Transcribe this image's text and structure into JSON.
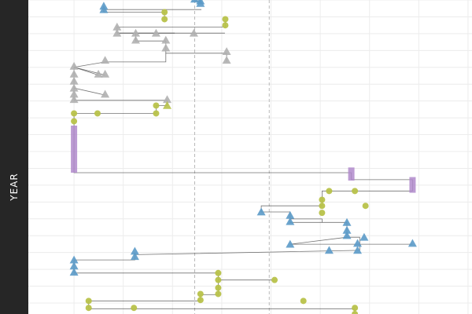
{
  "chart_data": {
    "type": "scatter",
    "ylabel": "YEAR",
    "xlim": [
      0,
      100
    ],
    "ylim": [
      0,
      36
    ],
    "x_ref_lines": [
      37.5,
      54.3
    ],
    "grid": true,
    "legend": "none",
    "colors": {
      "blue": "#5b9ac8",
      "olive": "#b8c24a",
      "gray": "#b0b0b0",
      "purple": "#b08acb",
      "connector": "#444444",
      "grid": "#ececec",
      "refline": "#b8b8b8",
      "strip": "#262626"
    },
    "paths": [
      {
        "c": "blue",
        "pts": [
          [
            37.5,
            0.1
          ],
          [
            38.8,
            0.1
          ],
          [
            38.8,
            0.4
          ]
        ]
      },
      {
        "c": "blue",
        "pts": [
          [
            17,
            0.8
          ],
          [
            17,
            1.1
          ],
          [
            39,
            1.1
          ]
        ]
      },
      {
        "c": "blue",
        "pts": [
          [
            17,
            1.1
          ],
          [
            17,
            1.4
          ]
        ]
      },
      {
        "c": "olive",
        "pts": [
          [
            17,
            1.4
          ],
          [
            30.7,
            1.4
          ],
          [
            30.7,
            2.3
          ]
        ]
      },
      {
        "c": "olive",
        "pts": [
          [
            44.4,
            2.4
          ],
          [
            44.4,
            3.1
          ],
          [
            20,
            3.1
          ]
        ]
      },
      {
        "c": "gray",
        "pts": [
          [
            20,
            3.1
          ],
          [
            20,
            3.8
          ],
          [
            44.3,
            3.8
          ]
        ]
      },
      {
        "c": "gray",
        "pts": [
          [
            20,
            3.8
          ],
          [
            33,
            3.8
          ]
        ]
      },
      {
        "c": "gray",
        "pts": [
          [
            24.2,
            3.8
          ],
          [
            24.2,
            4.7
          ],
          [
            31,
            4.7
          ],
          [
            31,
            5.5
          ]
        ]
      },
      {
        "c": "gray",
        "pts": [
          [
            31,
            5.5
          ],
          [
            31,
            6.1
          ],
          [
            44.7,
            6.1
          ]
        ]
      },
      {
        "c": "gray",
        "pts": [
          [
            31,
            6.1
          ],
          [
            31,
            7.1
          ],
          [
            17.3,
            7.1
          ]
        ]
      },
      {
        "c": "gray",
        "pts": [
          [
            44.7,
            6.1
          ],
          [
            44.7,
            7.1
          ]
        ]
      },
      {
        "c": "gray",
        "pts": [
          [
            17.3,
            7.1
          ],
          [
            10.3,
            7.7
          ]
        ]
      },
      {
        "c": "gray",
        "pts": [
          [
            10.3,
            7.7
          ],
          [
            15.8,
            8.6
          ]
        ]
      },
      {
        "c": "gray",
        "pts": [
          [
            10.3,
            7.7
          ],
          [
            17.3,
            8.6
          ]
        ]
      },
      {
        "c": "gray",
        "pts": [
          [
            10.3,
            7.7
          ],
          [
            10.3,
            8.6
          ],
          [
            10.3,
            9.3
          ],
          [
            10.3,
            10.1
          ],
          [
            17.3,
            10.9
          ]
        ]
      },
      {
        "c": "gray",
        "pts": [
          [
            10.3,
            10.1
          ],
          [
            10.3,
            10.8
          ],
          [
            10.3,
            11.5
          ],
          [
            31.3,
            11.5
          ]
        ]
      },
      {
        "c": "gray",
        "pts": [
          [
            31.3,
            11.5
          ],
          [
            31.3,
            12.1
          ],
          [
            28.8,
            12.1
          ],
          [
            28.8,
            13
          ]
        ]
      },
      {
        "c": "olive",
        "pts": [
          [
            28.8,
            13
          ],
          [
            10.3,
            13
          ],
          [
            10.3,
            13.9
          ]
        ]
      },
      {
        "c": "olive",
        "pts": [
          [
            10.3,
            13.9
          ],
          [
            10.3,
            14.8
          ],
          [
            10.3,
            15.6
          ]
        ]
      },
      {
        "c": "purple",
        "pts": [
          [
            10.3,
            15.6
          ],
          [
            10.3,
            16.5
          ],
          [
            10.3,
            17.4
          ],
          [
            10.3,
            18.3
          ],
          [
            10.3,
            19.2
          ],
          [
            10.3,
            19.8
          ],
          [
            72.8,
            19.8
          ],
          [
            72.8,
            20.6
          ],
          [
            86.6,
            20.6
          ],
          [
            86.6,
            21.9
          ]
        ]
      },
      {
        "c": "olive",
        "pts": [
          [
            86.6,
            21.9
          ],
          [
            66.2,
            21.9
          ],
          [
            66.2,
            22.9
          ],
          [
            66.2,
            23.6
          ]
        ]
      },
      {
        "c": "olive",
        "pts": [
          [
            66.2,
            23.6
          ],
          [
            52.5,
            23.6
          ],
          [
            52.5,
            24.3
          ]
        ]
      },
      {
        "c": "blue",
        "pts": [
          [
            52.5,
            24.3
          ],
          [
            59,
            24.3
          ],
          [
            59,
            25.1
          ],
          [
            66.2,
            25.1
          ],
          [
            66.2,
            25.5
          ]
        ]
      },
      {
        "c": "blue",
        "pts": [
          [
            59,
            25.1
          ],
          [
            59,
            25.5
          ],
          [
            71.8,
            25.5
          ],
          [
            71.8,
            26.5
          ],
          [
            71.8,
            27.2
          ]
        ]
      },
      {
        "c": "blue",
        "pts": [
          [
            71.8,
            27.2
          ],
          [
            59,
            28
          ],
          [
            86.6,
            28
          ]
        ]
      },
      {
        "c": "blue",
        "pts": [
          [
            71.8,
            27.2
          ],
          [
            74.7,
            27.2
          ],
          [
            74.7,
            28.7
          ],
          [
            24,
            29.2
          ]
        ]
      },
      {
        "c": "blue",
        "pts": [
          [
            24,
            29.2
          ],
          [
            24,
            29.8
          ],
          [
            10.3,
            29.8
          ]
        ]
      },
      {
        "c": "blue",
        "pts": [
          [
            10.3,
            29.8
          ],
          [
            10.3,
            30.5
          ],
          [
            10.3,
            31.3
          ]
        ]
      },
      {
        "c": "olive",
        "pts": [
          [
            10.3,
            31.3
          ],
          [
            42.8,
            31.3
          ],
          [
            42.8,
            32.1
          ],
          [
            55.5,
            32.1
          ]
        ]
      },
      {
        "c": "olive",
        "pts": [
          [
            42.8,
            32.1
          ],
          [
            42.8,
            33
          ],
          [
            42.8,
            33.8
          ]
        ]
      },
      {
        "c": "olive",
        "pts": [
          [
            42.8,
            33.8
          ],
          [
            38.8,
            33.8
          ],
          [
            38.8,
            34.5
          ],
          [
            13.6,
            34.5
          ]
        ]
      },
      {
        "c": "olive",
        "pts": [
          [
            13.6,
            34.5
          ],
          [
            13.6,
            35.4
          ],
          [
            73.6,
            35.4
          ]
        ]
      },
      {
        "c": "olive",
        "pts": [
          [
            73.6,
            35.4
          ],
          [
            73.6,
            36.2
          ],
          [
            20.5,
            36.2
          ]
        ]
      }
    ],
    "points": [
      {
        "c": "blue",
        "s": "triangle",
        "x": 37.5,
        "y": -0.1
      },
      {
        "c": "blue",
        "s": "triangle",
        "x": 38.8,
        "y": 0.1
      },
      {
        "c": "blue",
        "s": "triangle",
        "x": 38.8,
        "y": 0.4
      },
      {
        "c": "blue",
        "s": "triangle",
        "x": 17,
        "y": 0.7
      },
      {
        "c": "blue",
        "s": "triangle",
        "x": 17,
        "y": 1.1
      },
      {
        "c": "olive",
        "s": "circle",
        "x": 30.7,
        "y": 1.4
      },
      {
        "c": "olive",
        "s": "circle",
        "x": 30.7,
        "y": 2.2
      },
      {
        "c": "olive",
        "s": "circle",
        "x": 44.4,
        "y": 2.2
      },
      {
        "c": "olive",
        "s": "circle",
        "x": 44.4,
        "y": 2.9
      },
      {
        "c": "gray",
        "s": "triangle",
        "x": 20,
        "y": 3.1
      },
      {
        "c": "gray",
        "s": "triangle",
        "x": 20,
        "y": 3.8
      },
      {
        "c": "gray",
        "s": "triangle",
        "x": 24.2,
        "y": 3.8
      },
      {
        "c": "gray",
        "s": "triangle",
        "x": 28.8,
        "y": 3.8
      },
      {
        "c": "gray",
        "s": "triangle",
        "x": 37.3,
        "y": 3.8
      },
      {
        "c": "gray",
        "s": "triangle",
        "x": 24.2,
        "y": 4.6
      },
      {
        "c": "gray",
        "s": "triangle",
        "x": 31,
        "y": 4.6
      },
      {
        "c": "gray",
        "s": "triangle",
        "x": 31,
        "y": 5.5
      },
      {
        "c": "gray",
        "s": "triangle",
        "x": 44.7,
        "y": 5.9
      },
      {
        "c": "gray",
        "s": "triangle",
        "x": 17.3,
        "y": 6.9
      },
      {
        "c": "gray",
        "s": "triangle",
        "x": 44.7,
        "y": 6.9
      },
      {
        "c": "gray",
        "s": "triangle",
        "x": 10.3,
        "y": 7.6
      },
      {
        "c": "gray",
        "s": "triangle",
        "x": 15.8,
        "y": 8.5
      },
      {
        "c": "gray",
        "s": "triangle",
        "x": 17.3,
        "y": 8.5
      },
      {
        "c": "gray",
        "s": "triangle",
        "x": 10.3,
        "y": 8.5
      },
      {
        "c": "gray",
        "s": "triangle",
        "x": 10.3,
        "y": 9.3
      },
      {
        "c": "gray",
        "s": "triangle",
        "x": 10.3,
        "y": 10.1
      },
      {
        "c": "gray",
        "s": "triangle",
        "x": 17.3,
        "y": 10.8
      },
      {
        "c": "gray",
        "s": "triangle",
        "x": 10.3,
        "y": 10.8
      },
      {
        "c": "gray",
        "s": "triangle",
        "x": 10.3,
        "y": 11.4
      },
      {
        "c": "gray",
        "s": "triangle",
        "x": 31.3,
        "y": 11.4
      },
      {
        "c": "olive",
        "s": "triangle",
        "x": 31.3,
        "y": 12.1
      },
      {
        "c": "olive",
        "s": "circle",
        "x": 28.8,
        "y": 12.1
      },
      {
        "c": "olive",
        "s": "circle",
        "x": 28.8,
        "y": 13
      },
      {
        "c": "olive",
        "s": "circle",
        "x": 15.6,
        "y": 13
      },
      {
        "c": "olive",
        "s": "circle",
        "x": 10.3,
        "y": 13
      },
      {
        "c": "olive",
        "s": "circle",
        "x": 10.3,
        "y": 13.9
      },
      {
        "c": "olive",
        "s": "circle",
        "x": 67.8,
        "y": 21.9
      },
      {
        "c": "olive",
        "s": "circle",
        "x": 73.6,
        "y": 21.9
      },
      {
        "c": "olive",
        "s": "circle",
        "x": 66.2,
        "y": 22.9
      },
      {
        "c": "olive",
        "s": "circle",
        "x": 66.2,
        "y": 23.6
      },
      {
        "c": "olive",
        "s": "circle",
        "x": 76,
        "y": 23.6
      },
      {
        "c": "olive",
        "s": "circle",
        "x": 66.2,
        "y": 24.4
      },
      {
        "c": "blue",
        "s": "triangle",
        "x": 52.5,
        "y": 24.3
      },
      {
        "c": "blue",
        "s": "triangle",
        "x": 59,
        "y": 24.7
      },
      {
        "c": "blue",
        "s": "triangle",
        "x": 59,
        "y": 25.4
      },
      {
        "c": "blue",
        "s": "triangle",
        "x": 71.8,
        "y": 25.5
      },
      {
        "c": "blue",
        "s": "triangle",
        "x": 71.8,
        "y": 26.4
      },
      {
        "c": "blue",
        "s": "triangle",
        "x": 71.8,
        "y": 27
      },
      {
        "c": "blue",
        "s": "triangle",
        "x": 75.7,
        "y": 27.2
      },
      {
        "c": "blue",
        "s": "triangle",
        "x": 59,
        "y": 28
      },
      {
        "c": "blue",
        "s": "triangle",
        "x": 74.2,
        "y": 27.9
      },
      {
        "c": "blue",
        "s": "triangle",
        "x": 86.6,
        "y": 27.9
      },
      {
        "c": "blue",
        "s": "triangle",
        "x": 67.8,
        "y": 28.7
      },
      {
        "c": "blue",
        "s": "triangle",
        "x": 74.2,
        "y": 28.7
      },
      {
        "c": "blue",
        "s": "triangle",
        "x": 24,
        "y": 28.8
      },
      {
        "c": "blue",
        "s": "triangle",
        "x": 24,
        "y": 29.4
      },
      {
        "c": "blue",
        "s": "triangle",
        "x": 10.3,
        "y": 29.8
      },
      {
        "c": "blue",
        "s": "triangle",
        "x": 10.3,
        "y": 30.5
      },
      {
        "c": "blue",
        "s": "triangle",
        "x": 10.3,
        "y": 31.2
      },
      {
        "c": "olive",
        "s": "circle",
        "x": 42.8,
        "y": 31.3
      },
      {
        "c": "olive",
        "s": "circle",
        "x": 42.8,
        "y": 32.1
      },
      {
        "c": "olive",
        "s": "circle",
        "x": 55.5,
        "y": 32.1
      },
      {
        "c": "olive",
        "s": "circle",
        "x": 42.8,
        "y": 33
      },
      {
        "c": "olive",
        "s": "circle",
        "x": 38.8,
        "y": 33.7
      },
      {
        "c": "olive",
        "s": "circle",
        "x": 42.8,
        "y": 33.7
      },
      {
        "c": "olive",
        "s": "circle",
        "x": 38.8,
        "y": 34.4
      },
      {
        "c": "olive",
        "s": "circle",
        "x": 62,
        "y": 34.5
      },
      {
        "c": "olive",
        "s": "circle",
        "x": 13.6,
        "y": 34.5
      },
      {
        "c": "olive",
        "s": "circle",
        "x": 13.6,
        "y": 35.3
      },
      {
        "c": "olive",
        "s": "circle",
        "x": 23.8,
        "y": 35.3
      },
      {
        "c": "olive",
        "s": "circle",
        "x": 73.6,
        "y": 35.3
      },
      {
        "c": "olive",
        "s": "circle",
        "x": 73.6,
        "y": 36
      }
    ],
    "bars": [
      {
        "c": "purple",
        "x": 10.3,
        "y0": 14.4,
        "y1": 19.8
      },
      {
        "c": "purple",
        "x": 72.8,
        "y0": 19.2,
        "y1": 20.7
      },
      {
        "c": "purple",
        "x": 86.6,
        "y0": 20.3,
        "y1": 22.1
      }
    ]
  }
}
